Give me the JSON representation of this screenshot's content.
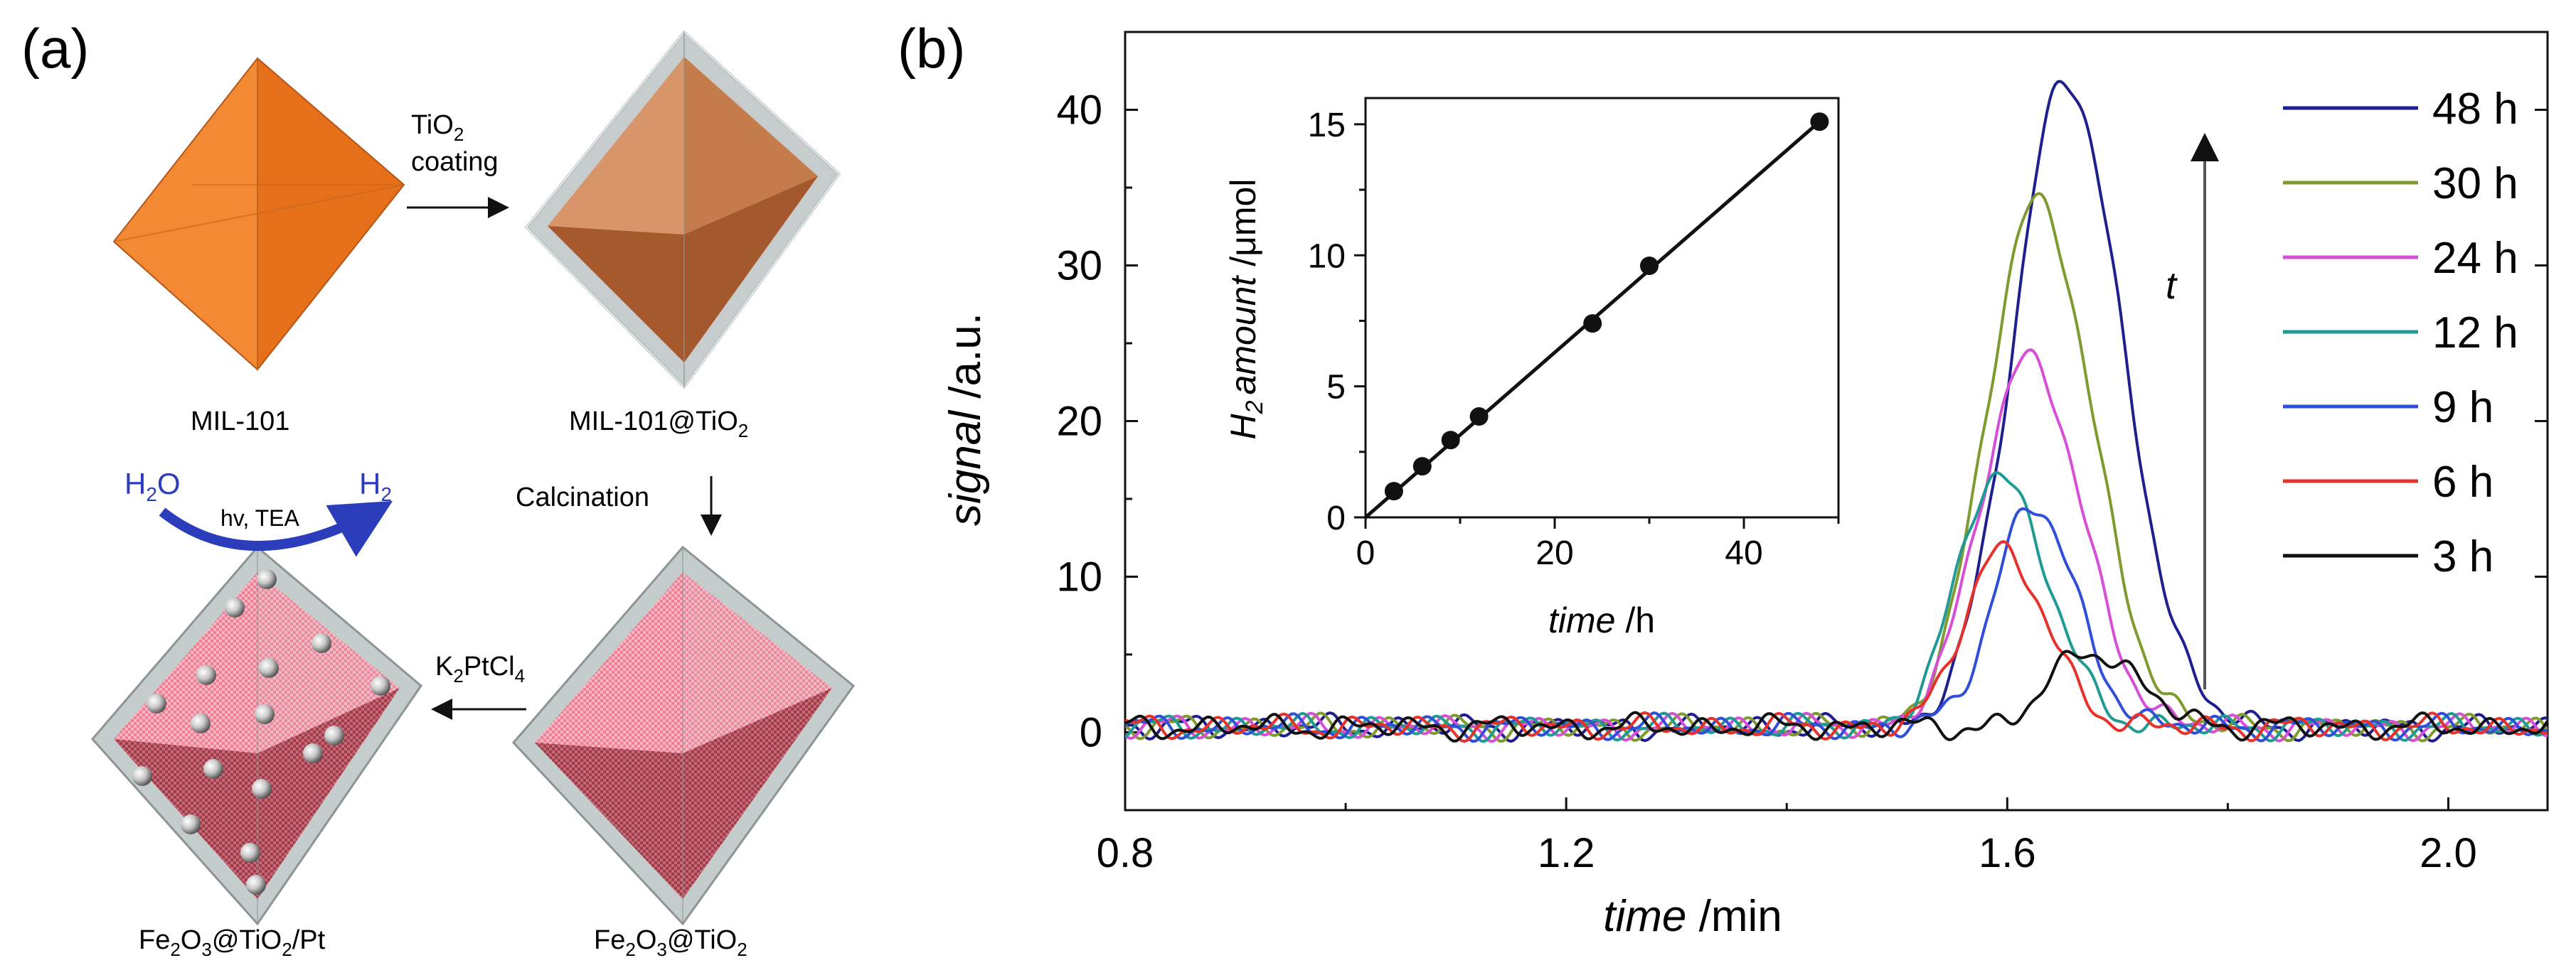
{
  "panel_a": {
    "label": "(a)",
    "coating_line1": "TiO",
    "coating_sub": "2",
    "coating_line2": "coating",
    "calcination": "Calcination",
    "k2ptcl4": {
      "a": "K",
      "b": "2",
      "c": "PtCl",
      "d": "4"
    },
    "hv_tea": "hv, TEA",
    "h2o": {
      "a": "H",
      "b": "2",
      "c": "O"
    },
    "h2": {
      "a": "H",
      "b": "2"
    },
    "mil101": "MIL-101",
    "mil101_tio2": {
      "a": "MIL-101@TiO",
      "b": "2"
    },
    "fe2o3_tio2": {
      "a": "Fe",
      "b": "2",
      "c": "O",
      "d": "3",
      "e": "@TiO",
      "f": "2"
    },
    "fe2o3_tio2_pt": {
      "a": "Fe",
      "b": "2",
      "c": "O",
      "d": "3",
      "e": "@TiO",
      "f": "2",
      "g": "/Pt"
    }
  },
  "colors": {
    "orange": "#f07f27",
    "tan": "#d9956a",
    "brown": "#a2562b",
    "pink": "#ef7f95",
    "maroon": "#9c3d4a",
    "shell": "#c4cccc",
    "arrow_blue": "#2b3dbb"
  },
  "chart_data": [
    {
      "type": "line",
      "panel_label": "(b)",
      "xlabel_italic": "time",
      "xlabel_unit": " /min",
      "ylabel_italic": "signal",
      "ylabel_unit": " /a.u.",
      "xlim": [
        0.8,
        2.09
      ],
      "ylim": [
        -5,
        45
      ],
      "x_ticks": [
        0.8,
        1.2,
        1.6,
        2.0
      ],
      "x_tick_labels": [
        "0.8",
        "1.2",
        "1.6",
        "2.0"
      ],
      "y_ticks": [
        0,
        10,
        20,
        30,
        40
      ],
      "y_tick_labels": [
        "0",
        "10",
        "20",
        "30",
        "40"
      ],
      "annotation": "t",
      "legend_position": "top-right",
      "series": [
        {
          "name": "48 h",
          "color": "#1f1f8f",
          "peak_x": 1.652,
          "peak_y": 41.6,
          "sigma_l": 0.046,
          "sigma_r": 0.052,
          "onset": 1.56,
          "noise_phase": 0.3
        },
        {
          "name": "30 h",
          "color": "#7f9a2e",
          "peak_x": 1.626,
          "peak_y": 33.9,
          "sigma_l": 0.044,
          "sigma_r": 0.05,
          "onset": 1.53,
          "noise_phase": 1.1
        },
        {
          "name": "24 h",
          "color": "#d64fd6",
          "peak_x": 1.618,
          "peak_y": 23.8,
          "sigma_l": 0.042,
          "sigma_r": 0.048,
          "onset": 1.52,
          "noise_phase": 1.9
        },
        {
          "name": "12 h",
          "color": "#1f9a95",
          "peak_x": 1.59,
          "peak_y": 16.4,
          "sigma_l": 0.035,
          "sigma_r": 0.045,
          "onset": 1.5,
          "noise_phase": 2.6
        },
        {
          "name": "9 h",
          "color": "#2f4fd8",
          "peak_x": 1.622,
          "peak_y": 14.2,
          "sigma_l": 0.034,
          "sigma_r": 0.04,
          "onset": 1.53,
          "noise_phase": 3.4
        },
        {
          "name": "6 h",
          "color": "#e6322a",
          "peak_x": 1.592,
          "peak_y": 11.4,
          "sigma_l": 0.032,
          "sigma_r": 0.042,
          "onset": 1.5,
          "noise_phase": 4.2
        },
        {
          "name": "3 h",
          "color": "#111111",
          "peak_x": 1.672,
          "peak_y": 5.0,
          "sigma_l": 0.032,
          "sigma_r": 0.045,
          "onset": 1.57,
          "noise_phase": 5.0
        }
      ]
    },
    {
      "type": "scatter",
      "role": "inset",
      "xlabel_italic": "time",
      "xlabel_unit": " /h",
      "ylabel_italic": "amount",
      "ylabel_prefix": "H",
      "ylabel_sub": "2",
      "ylabel_unit": " /μmol",
      "xlim": [
        0,
        50
      ],
      "ylim": [
        0,
        16
      ],
      "x_ticks": [
        0,
        20,
        40
      ],
      "x_tick_labels": [
        "0",
        "20",
        "40"
      ],
      "y_ticks": [
        0,
        5,
        10,
        15
      ],
      "y_tick_labels": [
        "0",
        "5",
        "10",
        "15"
      ],
      "x": [
        3,
        6,
        9,
        12,
        24,
        30,
        48
      ],
      "y": [
        1.0,
        1.95,
        2.95,
        3.85,
        7.4,
        9.6,
        15.1
      ],
      "fit_line": {
        "x": [
          0,
          48
        ],
        "y": [
          0,
          15.1
        ]
      }
    }
  ]
}
